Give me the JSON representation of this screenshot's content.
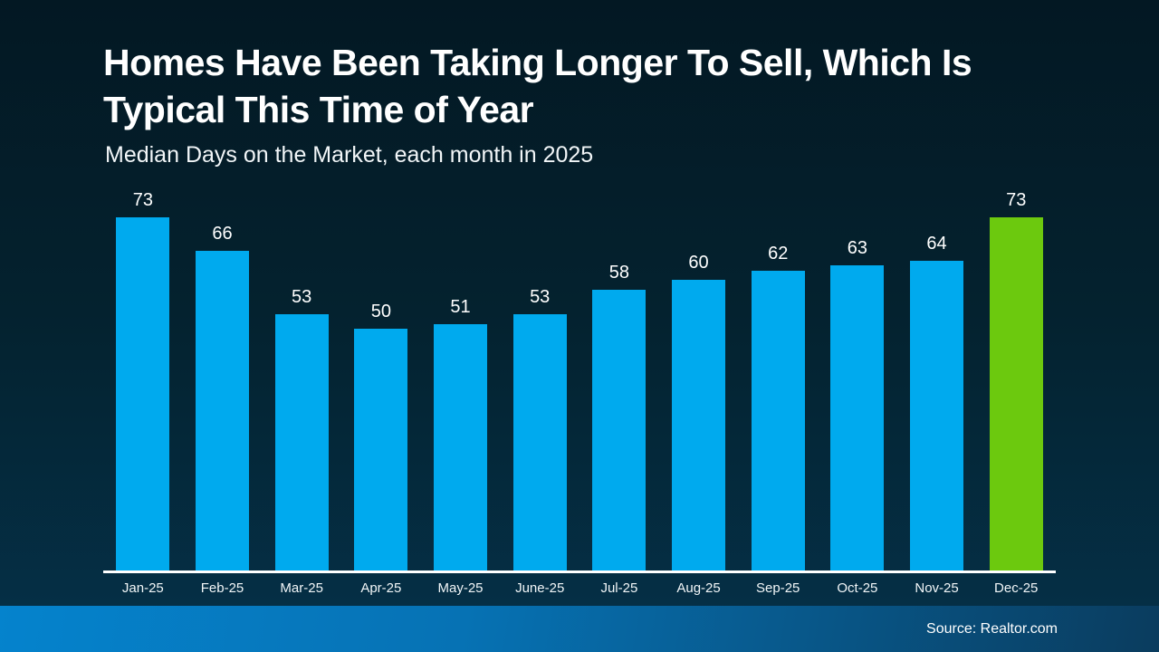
{
  "header": {
    "title_line1": "Homes Have Been Taking Longer To Sell, Which Is",
    "title_line2": "Typical This Time of Year",
    "subtitle": "Median Days on the Market, each month in 2025"
  },
  "chart_data": {
    "type": "bar",
    "title": "Homes Have Been Taking Longer To Sell, Which Is Typical This Time of Year",
    "subtitle": "Median Days on the Market, each month in 2025",
    "categories": [
      "Jan-25",
      "Feb-25",
      "Mar-25",
      "Apr-25",
      "May-25",
      "June-25",
      "Jul-25",
      "Aug-25",
      "Sep-25",
      "Oct-25",
      "Nov-25",
      "Dec-25"
    ],
    "values": [
      73,
      66,
      53,
      50,
      51,
      53,
      58,
      60,
      62,
      63,
      64,
      73
    ],
    "xlabel": "",
    "ylabel": "",
    "ylim": [
      0,
      73
    ],
    "grid": false,
    "legend": false,
    "data_labels": true,
    "bar_color": "#00aaee",
    "highlight_index": 11,
    "highlight_color": "#6cc90e"
  },
  "footer": {
    "source_label": "Source: Realtor.com"
  },
  "colors": {
    "background_top": "#031823",
    "background_bottom": "#053149",
    "text": "#ffffff",
    "axis_line": "#ffffff",
    "footer_gradient_left": "#0583cd",
    "footer_gradient_right": "#0a3c5e"
  }
}
